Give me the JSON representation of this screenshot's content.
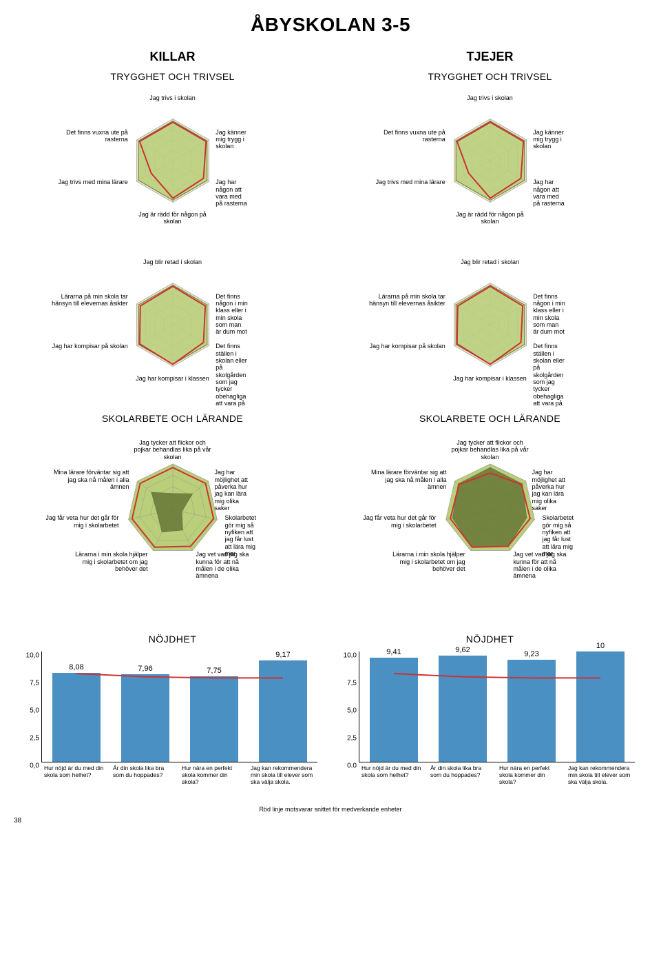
{
  "page_title": "ÅBYSKOLAN 3-5",
  "page_number": "38",
  "footnote": "Röd linje motsvarar snittet för medverkande enheter",
  "left": {
    "column_title": "KILLAR",
    "radar1": {
      "title": "TRYGGHET OCH TRIVSEL",
      "n_axes": 6,
      "labels": [
        "Jag trivs i skolan",
        "Jag känner mig trygg i skolan",
        "Jag har någon att vara med på rasterna",
        "Jag är rädd för någon på skolan",
        "Jag trivs med mina lärare",
        "Det finns vuxna ute på rasterna"
      ],
      "values": [
        0.95,
        0.95,
        0.95,
        0.95,
        0.95,
        0.95
      ],
      "benchmark": [
        0.92,
        0.92,
        0.85,
        0.9,
        0.6,
        0.92
      ],
      "fill": "#b9cf7a",
      "fill_opacity": 0.85,
      "grid": "#999999",
      "benchmark_stroke": "#cc3333",
      "benchmark_width": 2,
      "bg": "#e8e5c4"
    },
    "radar2": {
      "title": "",
      "n_axes": 6,
      "labels": [
        "Jag blir retad i skolan",
        "Det finns någon i min klass eller i min skola som man är dum mot",
        "Det finns ställen i skolan eller på skolgården som jag tycker obehagliga att vara på",
        "Jag har kompisar i klassen",
        "Jag har kompisar på skolan",
        "Lärarna på min skola tar hänsyn till elevernas åsikter"
      ],
      "values": [
        0.95,
        0.95,
        0.95,
        0.95,
        0.95,
        0.95
      ],
      "benchmark": [
        0.92,
        0.9,
        0.85,
        0.95,
        0.92,
        0.9
      ],
      "fill": "#b9cf7a",
      "fill_opacity": 0.85,
      "grid": "#999999",
      "benchmark_stroke": "#cc3333",
      "benchmark_width": 2,
      "bg": "#e8e5c4"
    },
    "radar3": {
      "title": "SKOLARBETE OCH LÄRANDE",
      "n_axes": 7,
      "labels": [
        "Jag tycker att flickor och pojkar behandlas lika på vår skolan",
        "Jag har möjlighet att påverka hur jag kan lära mig olika saker",
        "Skolarbetet gör mig så nyfiken att jag får lust att lära mig mer",
        "Jag vet vad jag ska kunna för att nå målen i de olika ämnena",
        "Lärarna i min skola hjälper mig i skolarbetet om jag behöver det",
        "Jag får veta hur det går för mig i skolarbetet",
        "Mina lärare förväntar sig att jag ska nå målen i alla ämnen"
      ],
      "values": [
        0.35,
        0.55,
        0.2,
        0.5,
        0.55,
        0.35,
        0.6
      ],
      "benchmark": [
        0.92,
        0.92,
        0.92,
        0.9,
        0.92,
        0.92,
        0.92
      ],
      "fill": "#6b7a3a",
      "fill_opacity": 0.9,
      "grid": "#999999",
      "benchmark_stroke": "#cc3333",
      "benchmark_width": 2,
      "bg": "#b9cf7a"
    },
    "bars": {
      "title": "NÖJDHET",
      "ymax": 10,
      "yticks": [
        "10,0",
        "7,5",
        "5,0",
        "2,5",
        "0,0"
      ],
      "categories": [
        "Hur nöjd är du med din skola som helhet?",
        "Är din skola lika bra som du hoppades?",
        "Hur nära en perfekt skola kommer din skola?",
        "Jag kan rekommendera min skola till elever som ska välja skola."
      ],
      "values": [
        8.08,
        7.96,
        7.75,
        9.17
      ],
      "value_labels": [
        "8,08",
        "7,96",
        "7,75",
        "9,17"
      ],
      "benchmark": [
        8.0,
        7.7,
        7.6,
        7.6
      ],
      "bar_color": "#4a90c2",
      "benchmark_color": "#cc3333"
    }
  },
  "right": {
    "column_title": "TJEJER",
    "radar1": {
      "title": "TRYGGHET OCH TRIVSEL",
      "n_axes": 6,
      "labels": [
        "Jag trivs i skolan",
        "Jag känner mig trygg i skolan",
        "Jag har någon att vara med på rasterna",
        "Jag är rädd för någon på skolan",
        "Jag trivs med mina lärare",
        "Det finns vuxna ute på rasterna"
      ],
      "values": [
        0.95,
        0.95,
        0.95,
        0.95,
        0.95,
        0.95
      ],
      "benchmark": [
        0.92,
        0.92,
        0.85,
        0.9,
        0.6,
        0.92
      ],
      "fill": "#b9cf7a",
      "fill_opacity": 0.85,
      "grid": "#999999",
      "benchmark_stroke": "#cc3333",
      "benchmark_width": 2,
      "bg": "#e8e5c4"
    },
    "radar2": {
      "title": "",
      "n_axes": 6,
      "labels": [
        "Jag blir retad i skolan",
        "Det finns någon i min klass eller i min skola som man är dum mot",
        "Det finns ställen i skolan eller på skolgården som jag tycker obehagliga att vara på",
        "Jag har kompisar i klassen",
        "Jag har kompisar på skolan",
        "Lärarna på min skola tar hänsyn till elevernas åsikter"
      ],
      "values": [
        0.95,
        0.95,
        0.95,
        0.95,
        0.95,
        0.95
      ],
      "benchmark": [
        0.92,
        0.9,
        0.85,
        0.95,
        0.92,
        0.9
      ],
      "fill": "#b9cf7a",
      "fill_opacity": 0.85,
      "grid": "#999999",
      "benchmark_stroke": "#cc3333",
      "benchmark_width": 2,
      "bg": "#e8e5c4"
    },
    "radar3": {
      "title": "SKOLARBETE OCH LÄRANDE",
      "n_axes": 7,
      "labels": [
        "Jag tycker att flickor och pojkar behandlas lika på vår skolan",
        "Jag har möjlighet att påverka hur jag kan lära mig olika saker",
        "Skolarbetet gör mig så nyfiken att jag får lust att lära mig mer",
        "Jag vet vad jag ska kunna för att nå målen i de olika ämnena",
        "Lärarna i min skola hjälper mig i skolarbetet om jag behöver det",
        "Jag får veta hur det går för mig i skolarbetet",
        "Mina lärare förväntar sig att jag ska nå målen i alla ämnen"
      ],
      "values": [
        0.92,
        0.9,
        0.82,
        0.9,
        0.92,
        0.85,
        0.9
      ],
      "benchmark": [
        0.8,
        0.88,
        0.9,
        0.9,
        0.92,
        0.9,
        0.88
      ],
      "fill": "#6b7a3a",
      "fill_opacity": 0.9,
      "grid": "#999999",
      "benchmark_stroke": "#cc3333",
      "benchmark_width": 2,
      "bg": "#b9cf7a"
    },
    "bars": {
      "title": "NÖJDHET",
      "ymax": 10,
      "yticks": [
        "10,0",
        "7,5",
        "5,0",
        "2,5",
        "0.0"
      ],
      "categories": [
        "Hur nöjd är du med din skola som helhet?",
        "Är din skola lika bra som du hoppades?",
        "Hur nära en perfekt skola kommer din skola?",
        "Jag kan rekommendera min skola till elever som ska välja skola."
      ],
      "values": [
        9.41,
        9.62,
        9.23,
        10
      ],
      "value_labels": [
        "9,41",
        "9,62",
        "9,23",
        "10"
      ],
      "benchmark": [
        8.0,
        7.7,
        7.6,
        7.6
      ],
      "bar_color": "#4a90c2",
      "benchmark_color": "#cc3333"
    }
  }
}
